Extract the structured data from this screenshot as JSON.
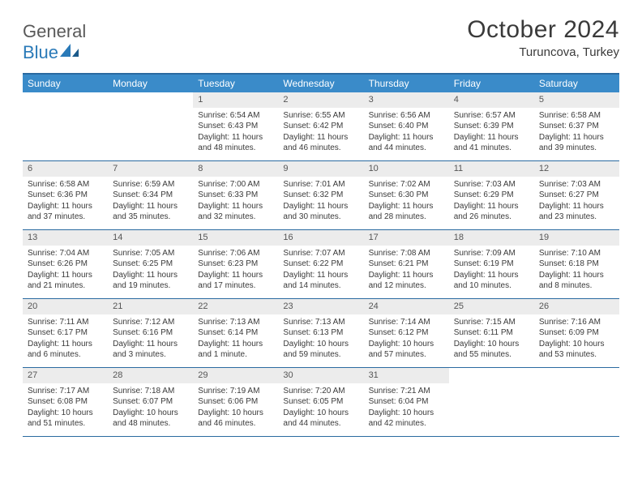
{
  "brand": {
    "text1": "General",
    "text2": "Blue"
  },
  "title": "October 2024",
  "location": "Turuncova, Turkey",
  "colors": {
    "header_bg": "#3a8bc9",
    "rule": "#2a6aa0",
    "daynum_bg": "#ececec",
    "text": "#3a3a3a"
  },
  "day_names": [
    "Sunday",
    "Monday",
    "Tuesday",
    "Wednesday",
    "Thursday",
    "Friday",
    "Saturday"
  ],
  "weeks": [
    [
      null,
      null,
      {
        "n": "1",
        "sr": "6:54 AM",
        "ss": "6:43 PM",
        "dl": "11 hours and 48 minutes."
      },
      {
        "n": "2",
        "sr": "6:55 AM",
        "ss": "6:42 PM",
        "dl": "11 hours and 46 minutes."
      },
      {
        "n": "3",
        "sr": "6:56 AM",
        "ss": "6:40 PM",
        "dl": "11 hours and 44 minutes."
      },
      {
        "n": "4",
        "sr": "6:57 AM",
        "ss": "6:39 PM",
        "dl": "11 hours and 41 minutes."
      },
      {
        "n": "5",
        "sr": "6:58 AM",
        "ss": "6:37 PM",
        "dl": "11 hours and 39 minutes."
      }
    ],
    [
      {
        "n": "6",
        "sr": "6:58 AM",
        "ss": "6:36 PM",
        "dl": "11 hours and 37 minutes."
      },
      {
        "n": "7",
        "sr": "6:59 AM",
        "ss": "6:34 PM",
        "dl": "11 hours and 35 minutes."
      },
      {
        "n": "8",
        "sr": "7:00 AM",
        "ss": "6:33 PM",
        "dl": "11 hours and 32 minutes."
      },
      {
        "n": "9",
        "sr": "7:01 AM",
        "ss": "6:32 PM",
        "dl": "11 hours and 30 minutes."
      },
      {
        "n": "10",
        "sr": "7:02 AM",
        "ss": "6:30 PM",
        "dl": "11 hours and 28 minutes."
      },
      {
        "n": "11",
        "sr": "7:03 AM",
        "ss": "6:29 PM",
        "dl": "11 hours and 26 minutes."
      },
      {
        "n": "12",
        "sr": "7:03 AM",
        "ss": "6:27 PM",
        "dl": "11 hours and 23 minutes."
      }
    ],
    [
      {
        "n": "13",
        "sr": "7:04 AM",
        "ss": "6:26 PM",
        "dl": "11 hours and 21 minutes."
      },
      {
        "n": "14",
        "sr": "7:05 AM",
        "ss": "6:25 PM",
        "dl": "11 hours and 19 minutes."
      },
      {
        "n": "15",
        "sr": "7:06 AM",
        "ss": "6:23 PM",
        "dl": "11 hours and 17 minutes."
      },
      {
        "n": "16",
        "sr": "7:07 AM",
        "ss": "6:22 PM",
        "dl": "11 hours and 14 minutes."
      },
      {
        "n": "17",
        "sr": "7:08 AM",
        "ss": "6:21 PM",
        "dl": "11 hours and 12 minutes."
      },
      {
        "n": "18",
        "sr": "7:09 AM",
        "ss": "6:19 PM",
        "dl": "11 hours and 10 minutes."
      },
      {
        "n": "19",
        "sr": "7:10 AM",
        "ss": "6:18 PM",
        "dl": "11 hours and 8 minutes."
      }
    ],
    [
      {
        "n": "20",
        "sr": "7:11 AM",
        "ss": "6:17 PM",
        "dl": "11 hours and 6 minutes."
      },
      {
        "n": "21",
        "sr": "7:12 AM",
        "ss": "6:16 PM",
        "dl": "11 hours and 3 minutes."
      },
      {
        "n": "22",
        "sr": "7:13 AM",
        "ss": "6:14 PM",
        "dl": "11 hours and 1 minute."
      },
      {
        "n": "23",
        "sr": "7:13 AM",
        "ss": "6:13 PM",
        "dl": "10 hours and 59 minutes."
      },
      {
        "n": "24",
        "sr": "7:14 AM",
        "ss": "6:12 PM",
        "dl": "10 hours and 57 minutes."
      },
      {
        "n": "25",
        "sr": "7:15 AM",
        "ss": "6:11 PM",
        "dl": "10 hours and 55 minutes."
      },
      {
        "n": "26",
        "sr": "7:16 AM",
        "ss": "6:09 PM",
        "dl": "10 hours and 53 minutes."
      }
    ],
    [
      {
        "n": "27",
        "sr": "7:17 AM",
        "ss": "6:08 PM",
        "dl": "10 hours and 51 minutes."
      },
      {
        "n": "28",
        "sr": "7:18 AM",
        "ss": "6:07 PM",
        "dl": "10 hours and 48 minutes."
      },
      {
        "n": "29",
        "sr": "7:19 AM",
        "ss": "6:06 PM",
        "dl": "10 hours and 46 minutes."
      },
      {
        "n": "30",
        "sr": "7:20 AM",
        "ss": "6:05 PM",
        "dl": "10 hours and 44 minutes."
      },
      {
        "n": "31",
        "sr": "7:21 AM",
        "ss": "6:04 PM",
        "dl": "10 hours and 42 minutes."
      },
      null,
      null
    ]
  ],
  "labels": {
    "sunrise": "Sunrise:",
    "sunset": "Sunset:",
    "daylight": "Daylight:"
  }
}
